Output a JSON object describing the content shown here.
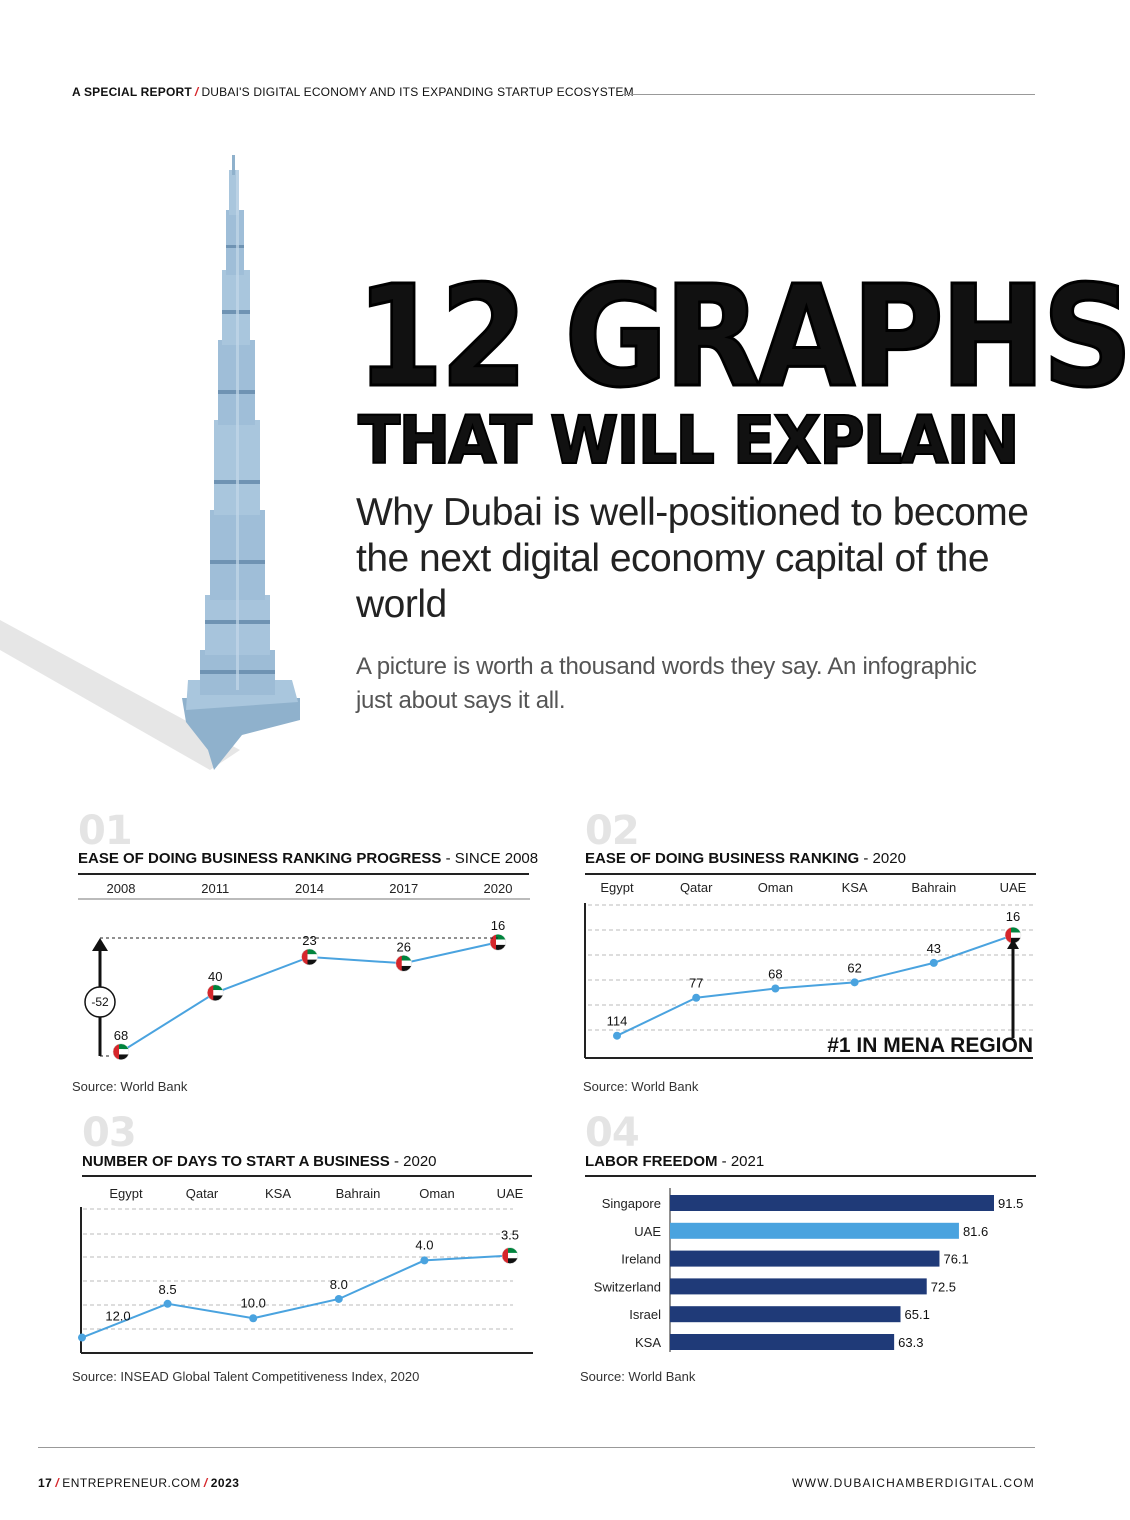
{
  "header": {
    "kicker": "A SPECIAL REPORT",
    "section": "DUBAI'S DIGITAL ECONOMY AND ITS EXPANDING STARTUP ECOSYSTEM"
  },
  "headline": {
    "line1": "12 GRAPHS",
    "line2": "THAT WILL EXPLAIN",
    "subtitle": "Why Dubai is well-positioned to become the next digital economy capital of the world",
    "intro": "A picture is worth a thousand words they say. An infographic just about says it all."
  },
  "colors": {
    "line": "#4aa3df",
    "bar_dark": "#1f3a78",
    "bar_highlight": "#4aa3df",
    "accent_red": "#d6262b",
    "flag_green": "#00843d",
    "grid": "#bbbbbb"
  },
  "charts_text": [
    {
      "number": "01",
      "title": "EASE OF DOING BUSINESS RANKING PROGRESS",
      "subtitle": "- SINCE 2008",
      "source": "Source: World Bank",
      "callout": "-52"
    },
    {
      "number": "02",
      "title": "EASE OF DOING BUSINESS RANKING",
      "subtitle": "- 2020",
      "source": "Source: World Bank",
      "callout": "#1 IN MENA REGION"
    },
    {
      "number": "03",
      "title": "NUMBER OF DAYS TO START A BUSINESS",
      "subtitle": "- 2020",
      "source": "Source: INSEAD Global Talent Competitiveness Index, 2020"
    },
    {
      "number": "04",
      "title": "LABOR FREEDOM",
      "subtitle": "- 2021",
      "source": "Source: World Bank"
    }
  ],
  "chart_data": [
    {
      "type": "line",
      "categories": [
        "2008",
        "2011",
        "2014",
        "2017",
        "2020"
      ],
      "values": [
        68,
        40,
        23,
        26,
        16
      ],
      "y_inverted": true,
      "ylim": [
        70,
        14
      ]
    },
    {
      "type": "line",
      "categories": [
        "Egypt",
        "Qatar",
        "Oman",
        "KSA",
        "Bahrain",
        "UAE"
      ],
      "values": [
        114,
        77,
        68,
        62,
        43,
        16
      ],
      "y_inverted": true,
      "ylim": [
        125,
        10
      ],
      "highlight": "UAE"
    },
    {
      "type": "line",
      "categories": [
        "Egypt",
        "Qatar",
        "KSA",
        "Bahrain",
        "Oman",
        "UAE"
      ],
      "values": [
        12.0,
        8.5,
        10.0,
        8.0,
        4.0,
        3.5
      ],
      "value_labels": [
        "12.0",
        "8.5",
        "10.0",
        "8.0",
        "4.0",
        "3.5"
      ],
      "y_inverted": true,
      "ylim": [
        13.5,
        2.4
      ],
      "highlight": "UAE"
    },
    {
      "type": "bar",
      "orientation": "horizontal",
      "categories": [
        "Singapore",
        "UAE",
        "Ireland",
        "Switzerland",
        "Israel",
        "KSA"
      ],
      "values": [
        91.5,
        81.6,
        76.1,
        72.5,
        65.1,
        63.3
      ],
      "value_labels": [
        "91.5",
        "81.6",
        "76.1",
        "72.5",
        "65.1",
        "63.3"
      ],
      "highlight": "UAE",
      "xlim": [
        0,
        91.5
      ]
    }
  ],
  "footer": {
    "page": "17",
    "site": "ENTREPRENEUR.COM",
    "year": "2023",
    "url": "WWW.DUBAICHAMBERDIGITAL.COM"
  }
}
